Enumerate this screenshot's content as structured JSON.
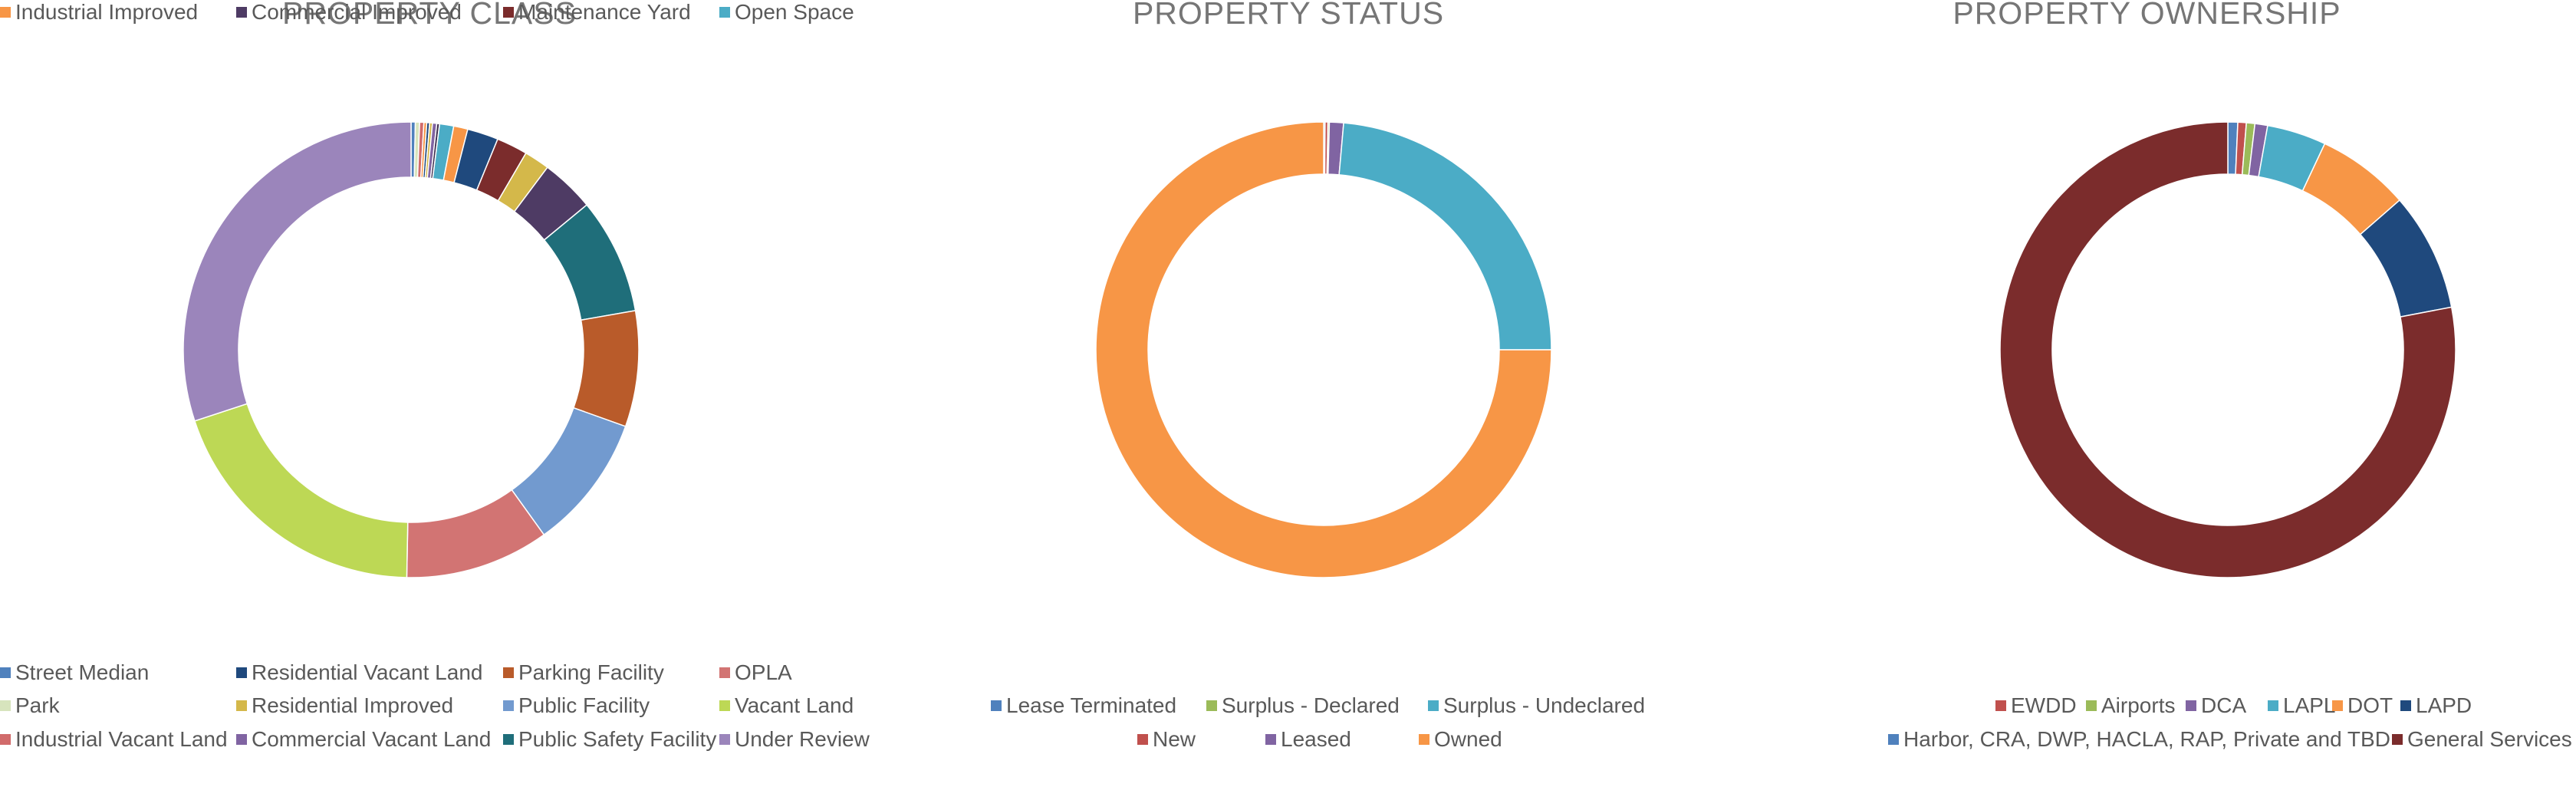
{
  "chart_data": [
    {
      "type": "donut",
      "title": "PROPERTY CLASS",
      "legend_position": "bottom",
      "slices": [
        {
          "label": "Street Median",
          "value": 0.3,
          "color": "#4F81BD"
        },
        {
          "label": "Park",
          "value": 0.3,
          "color": "#D7E4BD"
        },
        {
          "label": "Industrial Vacant Land",
          "value": 0.3,
          "color": "#D16B6B"
        },
        {
          "label": "Industrial Improved",
          "value": 0.2,
          "color": "#F79646"
        },
        {
          "label": "Residential Vacant Land",
          "value": 0.2,
          "color": "#1F497D"
        },
        {
          "label": "Residential Improved",
          "value": 0.2,
          "color": "#D4B84A"
        },
        {
          "label": "Commercial Vacant Land",
          "value": 0.3,
          "color": "#8064A2"
        },
        {
          "label": "Commercial Improved",
          "value": 0.2,
          "color": "#3F3151"
        },
        {
          "label": "Open Space",
          "value": 1.0,
          "color": "#4BACC6"
        },
        {
          "label": "Industrial Improved",
          "value": 1.0,
          "color": "#F79646"
        },
        {
          "label": "Residential Vacant Land",
          "value": 2.2,
          "color": "#1F497D"
        },
        {
          "label": "Maintenance Yard",
          "value": 2.2,
          "color": "#7B2C2C"
        },
        {
          "label": "Residential Improved",
          "value": 1.8,
          "color": "#D4B84A"
        },
        {
          "label": "Commercial Improved",
          "value": 3.8,
          "color": "#4E3B64"
        },
        {
          "label": "Public Safety Facility",
          "value": 8.2,
          "color": "#1F6E7A"
        },
        {
          "label": "Parking Facility",
          "value": 8.2,
          "color": "#B95B2A"
        },
        {
          "label": "Public Facility",
          "value": 9.6,
          "color": "#729ACF"
        },
        {
          "label": "OPLA",
          "value": 10.2,
          "color": "#D27473"
        },
        {
          "label": "Vacant Land",
          "value": 19.6,
          "color": "#BDD855"
        },
        {
          "label": "Under Review",
          "value": 30.0,
          "color": "#9B85BB"
        }
      ],
      "legend": [
        {
          "label": "Street Median",
          "color": "#4F81BD"
        },
        {
          "label": "Residential Vacant Land",
          "color": "#1F497D"
        },
        {
          "label": "Parking Facility",
          "color": "#B95B2A"
        },
        {
          "label": "OPLA",
          "color": "#D27473"
        },
        {
          "label": "Park",
          "color": "#D7E4BD"
        },
        {
          "label": "Residential Improved",
          "color": "#D4B84A"
        },
        {
          "label": "Public Facility",
          "color": "#729ACF"
        },
        {
          "label": "Vacant Land",
          "color": "#BDD855"
        },
        {
          "label": "Industrial Vacant Land",
          "color": "#D16B6B"
        },
        {
          "label": "Commercial Vacant Land",
          "color": "#8064A2"
        },
        {
          "label": "Public Safety Facility",
          "color": "#1F6E7A"
        },
        {
          "label": "Under Review",
          "color": "#9B85BB"
        },
        {
          "label": "Industrial Improved",
          "color": "#F79646"
        },
        {
          "label": "Commercial Improved",
          "color": "#4E3B64"
        },
        {
          "label": "Maintenance Yard",
          "color": "#7B2C2C"
        },
        {
          "label": "Open Space",
          "color": "#4BACC6"
        }
      ]
    },
    {
      "type": "donut",
      "title": "PROPERTY STATUS",
      "legend_position": "bottom",
      "slices": [
        {
          "label": "Lease Terminated",
          "value": 0.1,
          "color": "#4F81BD"
        },
        {
          "label": "New",
          "value": 0.2,
          "color": "#C0504D"
        },
        {
          "label": "Surplus - Declared",
          "value": 0.1,
          "color": "#9BBB59"
        },
        {
          "label": "Leased",
          "value": 1.0,
          "color": "#8064A2"
        },
        {
          "label": "Surplus - Undeclared",
          "value": 23.6,
          "color": "#4BACC6"
        },
        {
          "label": "Owned",
          "value": 75.0,
          "color": "#F79646"
        }
      ],
      "legend": [
        {
          "label": "Lease Terminated",
          "color": "#4F81BD"
        },
        {
          "label": "Surplus - Declared",
          "color": "#9BBB59"
        },
        {
          "label": "Surplus - Undeclared",
          "color": "#4BACC6"
        },
        {
          "label": "New",
          "color": "#C0504D"
        },
        {
          "label": "Leased",
          "color": "#8064A2"
        },
        {
          "label": "Owned",
          "color": "#F79646"
        }
      ]
    },
    {
      "type": "donut",
      "title": "PROPERTY OWNERSHIP",
      "legend_position": "bottom",
      "slices": [
        {
          "label": "Harbor, CRA, DWP, HACLA, RAP, Private and TBD",
          "value": 0.7,
          "color": "#4F81BD"
        },
        {
          "label": "EWDD",
          "value": 0.6,
          "color": "#C0504D"
        },
        {
          "label": "Airports",
          "value": 0.6,
          "color": "#9BBB59"
        },
        {
          "label": "DCA",
          "value": 0.9,
          "color": "#8064A2"
        },
        {
          "label": "LAPL",
          "value": 4.2,
          "color": "#4BACC6"
        },
        {
          "label": "DOT",
          "value": 6.6,
          "color": "#F79646"
        },
        {
          "label": "LAPD",
          "value": 8.4,
          "color": "#1F497D"
        },
        {
          "label": "General Services",
          "value": 78.0,
          "color": "#7B2C2C"
        }
      ],
      "legend": [
        {
          "label": "EWDD",
          "color": "#C0504D"
        },
        {
          "label": "Airports",
          "color": "#9BBB59"
        },
        {
          "label": "DCA",
          "color": "#8064A2"
        },
        {
          "label": "LAPL",
          "color": "#4BACC6"
        },
        {
          "label": "DOT",
          "color": "#F79646"
        },
        {
          "label": "LAPD",
          "color": "#1F497D"
        },
        {
          "label": "Harbor, CRA, DWP, HACLA, RAP, Private and TBD",
          "color": "#4F81BD"
        },
        {
          "label": "General Services",
          "color": "#7B2C2C"
        }
      ]
    }
  ]
}
